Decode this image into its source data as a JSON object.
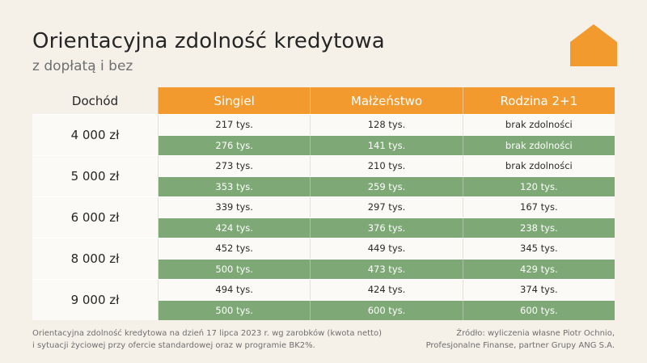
{
  "title": "Orientacyjna zdolność kredytowa",
  "subtitle": "z dopłatą i bez",
  "logo": {
    "icon": "house-icon",
    "color": "#f39a2e"
  },
  "colors": {
    "header": "#f39a2e",
    "green_row": "#7ea876",
    "light_row": "#fbfaf6",
    "background": "#f5f1e8"
  },
  "table": {
    "row_header": "Dochód",
    "columns": [
      "Singiel",
      "Małżeństwo",
      "Rodzina 2+1"
    ],
    "groups": [
      {
        "income": "4 000 zł",
        "without": [
          "217 tys.",
          "128 tys.",
          "brak zdolności"
        ],
        "with": [
          "276 tys.",
          "141 tys.",
          "brak zdolności"
        ]
      },
      {
        "income": "5 000 zł",
        "without": [
          "273 tys.",
          "210 tys.",
          "brak zdolności"
        ],
        "with": [
          "353 tys.",
          "259 tys.",
          "120 tys."
        ]
      },
      {
        "income": "6 000 zł",
        "without": [
          "339 tys.",
          "297 tys.",
          "167 tys."
        ],
        "with": [
          "424 tys.",
          "376 tys.",
          "238 tys."
        ]
      },
      {
        "income": "8 000 zł",
        "without": [
          "452 tys.",
          "449 tys.",
          "345 tys."
        ],
        "with": [
          "500 tys.",
          "473 tys.",
          "429 tys."
        ]
      },
      {
        "income": "9 000 zł",
        "without": [
          "494 tys.",
          "424 tys.",
          "374 tys."
        ],
        "with": [
          "500 tys.",
          "600 tys.",
          "600 tys."
        ]
      }
    ]
  },
  "footer": {
    "left_line1": "Orientacyjna zdolność kredytowa na dzień 17 lipca 2023 r. wg zarobków (kwota netto)",
    "left_line2": "i sytuacji życiowej przy ofercie standardowej oraz w programie BK2%.",
    "right_line1": "Źródło: wyliczenia własne Piotr Ochnio,",
    "right_line2": "Profesjonalne Finanse, partner Grupy ANG S.A."
  }
}
